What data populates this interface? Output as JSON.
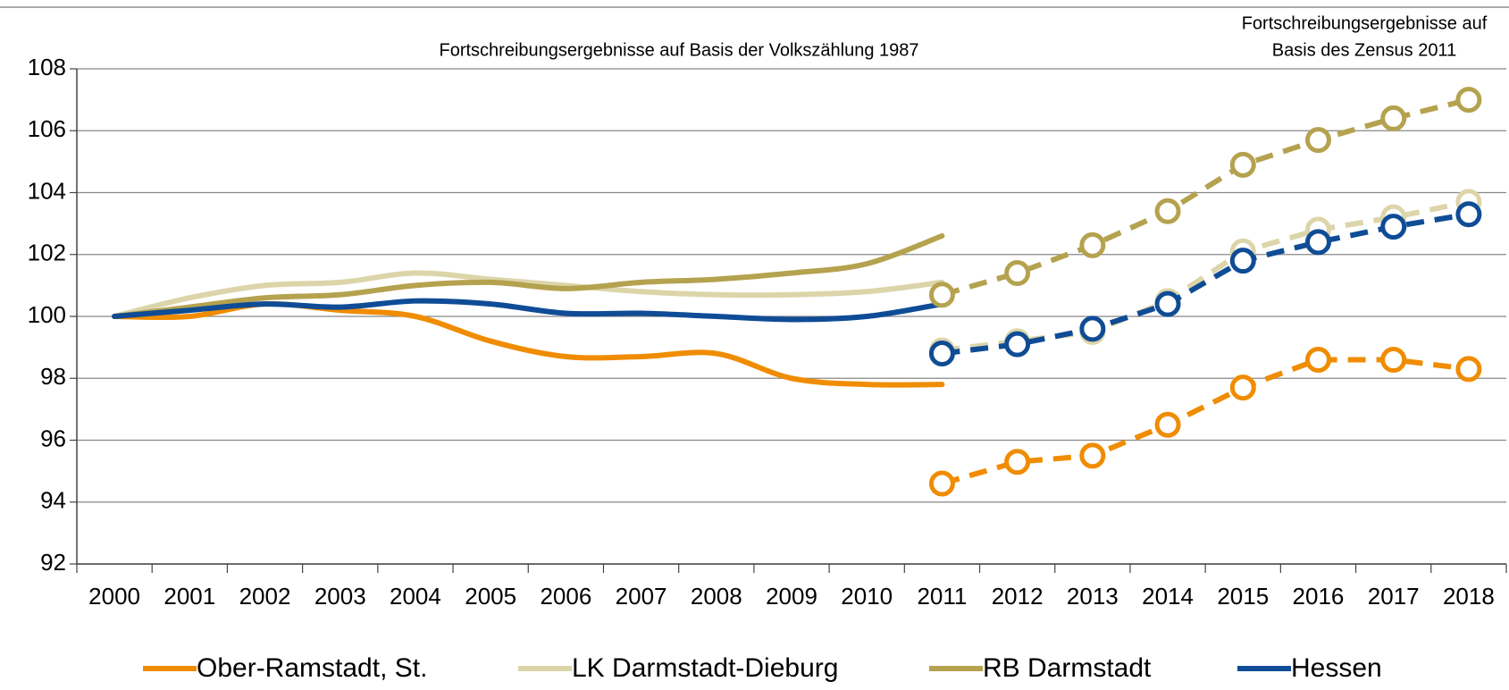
{
  "chart_data": {
    "type": "line",
    "annotations": [
      "Fortschreibungsergebnisse auf Basis der Volkszählung 1987",
      [
        "Fortschreibungsergebnisse auf",
        "Basis des Zensus 2011"
      ]
    ],
    "categories": [
      "2000",
      "2001",
      "2002",
      "2003",
      "2004",
      "2005",
      "2006",
      "2007",
      "2008",
      "2009",
      "2010",
      "2011",
      "2012",
      "2013",
      "2014",
      "2015",
      "2016",
      "2017",
      "2018"
    ],
    "ylim": [
      92,
      108
    ],
    "yticks": [
      92,
      94,
      96,
      98,
      100,
      102,
      104,
      106,
      108
    ],
    "grid": true,
    "series": [
      {
        "name": "Ober-Ramstadt, St.",
        "color": "#f08c00",
        "values": [
          100,
          100.0,
          100.4,
          100.2,
          100.0,
          99.2,
          98.7,
          98.7,
          98.8,
          98.0,
          97.8,
          97.8,
          null,
          null,
          null,
          null,
          null,
          null,
          null
        ],
        "values_zensus": [
          null,
          null,
          null,
          null,
          null,
          null,
          null,
          null,
          null,
          null,
          null,
          94.6,
          95.3,
          95.5,
          96.5,
          97.7,
          98.6,
          98.6,
          98.3
        ]
      },
      {
        "name": "LK Darmstadt-Dieburg",
        "color": "#dcd5aa",
        "values": [
          100,
          100.6,
          101.0,
          101.1,
          101.4,
          101.2,
          101.0,
          100.8,
          100.7,
          100.7,
          100.8,
          101.1,
          null,
          null,
          null,
          null,
          null,
          null,
          null
        ],
        "values_zensus": [
          null,
          null,
          null,
          null,
          null,
          null,
          null,
          null,
          null,
          null,
          null,
          98.9,
          99.2,
          99.5,
          100.5,
          102.1,
          102.8,
          103.2,
          103.7
        ]
      },
      {
        "name": "RB Darmstadt",
        "color": "#b5a24f",
        "values": [
          100,
          100.3,
          100.6,
          100.7,
          101.0,
          101.1,
          100.9,
          101.1,
          101.2,
          101.4,
          101.7,
          102.6,
          null,
          null,
          null,
          null,
          null,
          null,
          null
        ],
        "values_zensus": [
          null,
          null,
          null,
          null,
          null,
          null,
          null,
          null,
          null,
          null,
          null,
          100.7,
          101.4,
          102.3,
          103.4,
          104.9,
          105.7,
          106.4,
          107.0
        ]
      },
      {
        "name": "Hessen",
        "color": "#0f4c96",
        "values": [
          100,
          100.2,
          100.4,
          100.3,
          100.5,
          100.4,
          100.1,
          100.1,
          100.0,
          99.9,
          100.0,
          100.4,
          null,
          null,
          null,
          null,
          null,
          null,
          null
        ],
        "values_zensus": [
          null,
          null,
          null,
          null,
          null,
          null,
          null,
          null,
          null,
          null,
          null,
          98.8,
          99.1,
          99.6,
          100.4,
          101.8,
          102.4,
          102.9,
          103.3
        ]
      }
    ]
  }
}
